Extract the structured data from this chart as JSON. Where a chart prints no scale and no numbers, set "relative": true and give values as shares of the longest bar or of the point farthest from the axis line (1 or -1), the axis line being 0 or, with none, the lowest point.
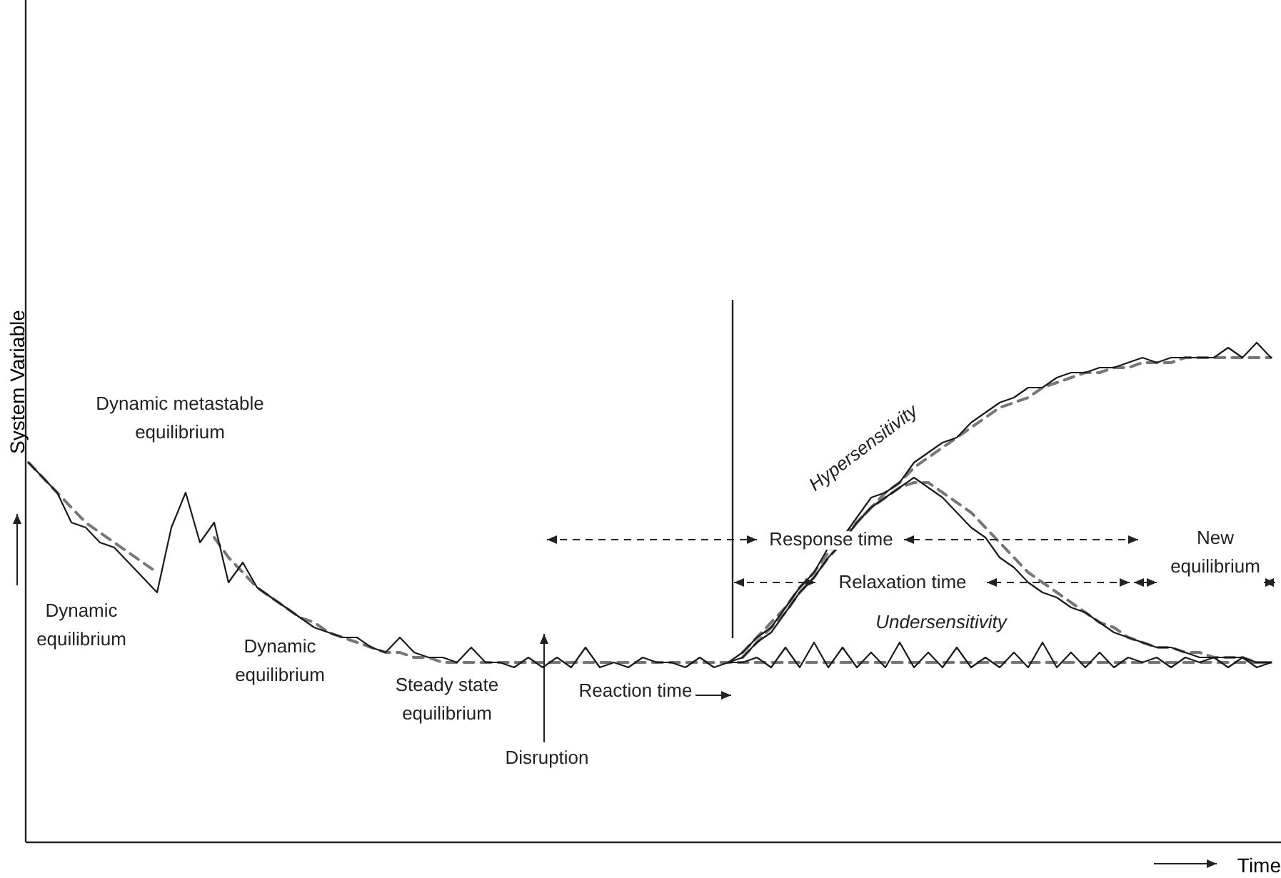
{
  "chart_data": {
    "type": "line",
    "relative": true,
    "xlabel": "Time",
    "ylabel": "System Variable",
    "grid": false,
    "marker": "none",
    "categories": [
      null,
      null,
      null,
      null,
      null,
      null,
      null,
      null,
      null,
      null,
      null,
      null,
      null,
      null,
      null,
      null,
      null,
      null,
      null,
      null,
      null,
      null,
      null,
      null,
      null,
      null,
      null,
      null,
      null,
      null,
      null,
      null,
      null,
      null,
      null,
      null,
      null,
      null,
      null,
      null,
      null,
      null,
      null,
      null,
      null,
      null,
      null,
      null,
      null,
      null,
      null,
      null,
      null,
      null,
      null,
      null,
      null,
      null,
      null,
      null,
      null,
      null,
      null,
      null,
      null,
      null,
      null,
      null,
      null,
      null,
      null,
      null,
      null,
      null,
      null,
      null,
      null,
      null,
      null,
      null,
      null,
      null,
      null,
      null,
      null,
      null,
      null,
      null
    ],
    "series": [
      {
        "color": "#777777",
        "line_style": "dashed",
        "values": [
          0.76,
          0.73,
          0.7,
          0.67,
          0.64,
          0.62,
          0.6,
          0.58,
          0.56,
          0.54,
          null,
          null,
          null,
          0.61,
          0.57,
          0.54,
          0.51,
          0.49,
          0.47,
          0.45,
          0.44,
          0.42,
          0.41,
          0.4,
          0.39,
          0.38,
          0.38,
          0.37,
          0.37,
          0.36,
          0.36,
          0.36,
          0.36,
          0.36,
          0.36,
          0.36,
          0.36,
          0.36,
          0.36,
          0.36,
          0.36,
          0.36,
          0.36,
          0.36,
          0.36,
          0.36,
          0.36,
          0.36,
          0.36,
          0.36,
          0.36,
          0.36,
          0.36,
          0.36,
          0.36,
          0.36,
          0.36,
          0.36,
          0.36,
          0.36,
          0.36,
          0.36,
          0.36,
          0.36,
          0.36,
          0.36,
          0.36,
          0.36,
          0.36,
          0.36,
          0.36,
          0.36,
          0.36,
          0.36,
          0.36,
          0.36,
          0.36,
          0.36,
          0.36,
          0.36,
          0.36,
          0.36,
          0.36,
          0.36,
          0.36,
          0.36,
          0.36,
          0.36
        ]
      },
      {
        "color": "#777777",
        "line_style": "dashed",
        "values": [
          null,
          null,
          null,
          null,
          null,
          null,
          null,
          null,
          null,
          null,
          null,
          null,
          null,
          null,
          null,
          null,
          null,
          null,
          null,
          null,
          null,
          null,
          null,
          null,
          null,
          null,
          null,
          null,
          null,
          null,
          null,
          null,
          null,
          null,
          null,
          null,
          null,
          null,
          null,
          null,
          null,
          null,
          null,
          null,
          null,
          null,
          null,
          null,
          null,
          null,
          0.38,
          0.41,
          0.44,
          0.47,
          0.51,
          0.54,
          0.58,
          0.61,
          0.64,
          0.67,
          0.7,
          0.72,
          0.75,
          0.77,
          0.79,
          0.81,
          0.83,
          0.85,
          0.87,
          0.88,
          0.89,
          0.91,
          0.92,
          0.93,
          0.94,
          0.94,
          0.95,
          0.95,
          0.96,
          0.96,
          0.96,
          0.97,
          0.97,
          0.97,
          0.97,
          0.97,
          0.97,
          0.97
        ]
      },
      {
        "color": "#777777",
        "line_style": "dashed",
        "values": [
          null,
          null,
          null,
          null,
          null,
          null,
          null,
          null,
          null,
          null,
          null,
          null,
          null,
          null,
          null,
          null,
          null,
          null,
          null,
          null,
          null,
          null,
          null,
          null,
          null,
          null,
          null,
          null,
          null,
          null,
          null,
          null,
          null,
          null,
          null,
          null,
          null,
          null,
          null,
          null,
          null,
          null,
          null,
          null,
          null,
          null,
          null,
          null,
          null,
          null,
          0.37,
          0.4,
          0.43,
          0.46,
          0.5,
          0.53,
          0.57,
          0.6,
          0.64,
          0.67,
          0.69,
          0.71,
          0.72,
          0.72,
          0.7,
          0.68,
          0.66,
          0.63,
          0.6,
          0.57,
          0.54,
          0.52,
          0.5,
          0.48,
          0.46,
          0.44,
          0.43,
          0.41,
          0.4,
          0.39,
          0.39,
          0.38,
          0.38,
          0.37,
          0.37,
          0.37,
          0.36,
          0.36
        ]
      },
      {
        "color": "#1a1a1a",
        "line_style": "solid",
        "values": [
          0.76,
          0.73,
          0.7,
          0.64,
          0.63,
          0.6,
          0.59,
          0.56,
          0.53,
          0.5,
          0.63,
          0.7,
          0.6,
          0.64,
          0.52,
          0.56,
          0.51,
          0.49,
          0.47,
          0.45,
          0.43,
          0.42,
          0.41,
          0.41,
          0.39,
          0.38,
          0.41,
          0.38,
          0.37,
          0.37,
          0.36,
          0.39,
          0.36,
          0.36,
          0.35,
          0.37,
          0.35,
          0.37,
          0.35,
          0.39,
          0.35,
          0.36,
          0.35,
          0.37,
          0.36,
          0.36,
          0.35,
          0.37,
          0.35,
          0.36,
          0.36,
          0.37,
          0.35,
          0.39,
          0.35,
          0.4,
          0.35,
          0.39,
          0.35,
          0.38,
          0.35,
          0.4,
          0.35,
          0.38,
          0.35,
          0.39,
          0.35,
          0.37,
          0.35,
          0.38,
          0.35,
          0.4,
          0.35,
          0.38,
          0.35,
          0.38,
          0.35,
          0.37,
          0.36,
          0.37,
          0.35,
          0.37,
          0.36,
          0.37,
          0.35,
          0.37,
          0.35,
          0.36
        ]
      },
      {
        "color": "#1a1a1a",
        "line_style": "solid",
        "values": [
          null,
          null,
          null,
          null,
          null,
          null,
          null,
          null,
          null,
          null,
          null,
          null,
          null,
          null,
          null,
          null,
          null,
          null,
          null,
          null,
          null,
          null,
          null,
          null,
          null,
          null,
          null,
          null,
          null,
          null,
          null,
          null,
          null,
          null,
          null,
          null,
          null,
          null,
          null,
          null,
          null,
          null,
          null,
          null,
          null,
          null,
          null,
          null,
          null,
          0.36,
          0.38,
          0.41,
          0.43,
          0.47,
          0.51,
          0.54,
          0.59,
          0.61,
          0.65,
          0.69,
          0.7,
          0.72,
          0.76,
          0.78,
          0.8,
          0.81,
          0.84,
          0.86,
          0.88,
          0.89,
          0.91,
          0.91,
          0.93,
          0.94,
          0.94,
          0.95,
          0.95,
          0.96,
          0.97,
          0.96,
          0.97,
          0.97,
          0.97,
          0.97,
          0.99,
          0.97,
          1,
          0.97
        ]
      },
      {
        "color": "#1a1a1a",
        "line_style": "solid",
        "values": [
          null,
          null,
          null,
          null,
          null,
          null,
          null,
          null,
          null,
          null,
          null,
          null,
          null,
          null,
          null,
          null,
          null,
          null,
          null,
          null,
          null,
          null,
          null,
          null,
          null,
          null,
          null,
          null,
          null,
          null,
          null,
          null,
          null,
          null,
          null,
          null,
          null,
          null,
          null,
          null,
          null,
          null,
          null,
          null,
          null,
          null,
          null,
          null,
          null,
          0.36,
          0.37,
          0.4,
          0.42,
          0.46,
          0.5,
          0.53,
          0.57,
          0.6,
          0.64,
          0.67,
          0.69,
          0.71,
          0.73,
          0.71,
          0.69,
          0.66,
          0.63,
          0.61,
          0.57,
          0.55,
          0.52,
          0.5,
          0.49,
          0.47,
          0.46,
          0.44,
          0.42,
          0.41,
          0.4,
          0.39,
          0.39,
          0.38,
          0.37,
          0.37,
          0.37,
          0.37,
          0.36,
          0.36
        ]
      }
    ],
    "annotations": [
      "Dynamic metastable\nequilibrium",
      "Dynamic\nequilibrium",
      "Dynamic\nequilibrium",
      "Steady state\nequilibrium",
      "Disruption",
      "Reaction time",
      "Response time",
      "Relaxation time",
      "New\nequilibrium",
      "Hypersensitivity",
      "Undersensitivity"
    ]
  }
}
